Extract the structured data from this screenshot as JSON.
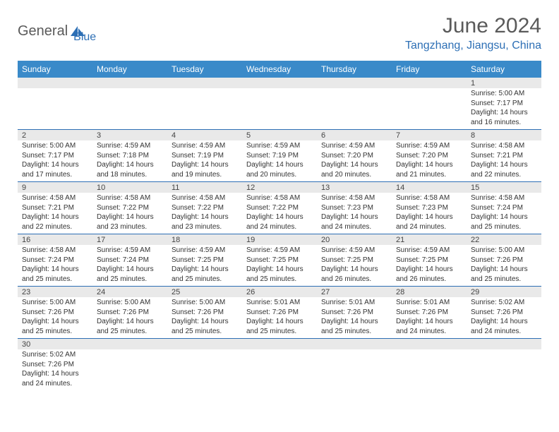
{
  "logo": {
    "part1": "General",
    "part2": "Blue"
  },
  "title": "June 2024",
  "location": "Tangzhang, Jiangsu, China",
  "colors": {
    "header_bg": "#3a8ac9",
    "accent": "#2d6fb5",
    "grey_text": "#5a5a5a",
    "daynum_bg": "#e9e9e9"
  },
  "fonts": {
    "title_size": 30,
    "location_size": 16,
    "th_size": 12,
    "day_size": 11,
    "body_size": 10
  },
  "weekdays": [
    "Sunday",
    "Monday",
    "Tuesday",
    "Wednesday",
    "Thursday",
    "Friday",
    "Saturday"
  ],
  "weeks": [
    [
      null,
      null,
      null,
      null,
      null,
      null,
      {
        "n": "1",
        "sr": "5:00 AM",
        "ss": "7:17 PM",
        "dl": "14 hours and 16 minutes."
      }
    ],
    [
      {
        "n": "2",
        "sr": "5:00 AM",
        "ss": "7:17 PM",
        "dl": "14 hours and 17 minutes."
      },
      {
        "n": "3",
        "sr": "4:59 AM",
        "ss": "7:18 PM",
        "dl": "14 hours and 18 minutes."
      },
      {
        "n": "4",
        "sr": "4:59 AM",
        "ss": "7:19 PM",
        "dl": "14 hours and 19 minutes."
      },
      {
        "n": "5",
        "sr": "4:59 AM",
        "ss": "7:19 PM",
        "dl": "14 hours and 20 minutes."
      },
      {
        "n": "6",
        "sr": "4:59 AM",
        "ss": "7:20 PM",
        "dl": "14 hours and 20 minutes."
      },
      {
        "n": "7",
        "sr": "4:59 AM",
        "ss": "7:20 PM",
        "dl": "14 hours and 21 minutes."
      },
      {
        "n": "8",
        "sr": "4:58 AM",
        "ss": "7:21 PM",
        "dl": "14 hours and 22 minutes."
      }
    ],
    [
      {
        "n": "9",
        "sr": "4:58 AM",
        "ss": "7:21 PM",
        "dl": "14 hours and 22 minutes."
      },
      {
        "n": "10",
        "sr": "4:58 AM",
        "ss": "7:22 PM",
        "dl": "14 hours and 23 minutes."
      },
      {
        "n": "11",
        "sr": "4:58 AM",
        "ss": "7:22 PM",
        "dl": "14 hours and 23 minutes."
      },
      {
        "n": "12",
        "sr": "4:58 AM",
        "ss": "7:22 PM",
        "dl": "14 hours and 24 minutes."
      },
      {
        "n": "13",
        "sr": "4:58 AM",
        "ss": "7:23 PM",
        "dl": "14 hours and 24 minutes."
      },
      {
        "n": "14",
        "sr": "4:58 AM",
        "ss": "7:23 PM",
        "dl": "14 hours and 24 minutes."
      },
      {
        "n": "15",
        "sr": "4:58 AM",
        "ss": "7:24 PM",
        "dl": "14 hours and 25 minutes."
      }
    ],
    [
      {
        "n": "16",
        "sr": "4:58 AM",
        "ss": "7:24 PM",
        "dl": "14 hours and 25 minutes."
      },
      {
        "n": "17",
        "sr": "4:59 AM",
        "ss": "7:24 PM",
        "dl": "14 hours and 25 minutes."
      },
      {
        "n": "18",
        "sr": "4:59 AM",
        "ss": "7:25 PM",
        "dl": "14 hours and 25 minutes."
      },
      {
        "n": "19",
        "sr": "4:59 AM",
        "ss": "7:25 PM",
        "dl": "14 hours and 25 minutes."
      },
      {
        "n": "20",
        "sr": "4:59 AM",
        "ss": "7:25 PM",
        "dl": "14 hours and 26 minutes."
      },
      {
        "n": "21",
        "sr": "4:59 AM",
        "ss": "7:25 PM",
        "dl": "14 hours and 26 minutes."
      },
      {
        "n": "22",
        "sr": "5:00 AM",
        "ss": "7:26 PM",
        "dl": "14 hours and 25 minutes."
      }
    ],
    [
      {
        "n": "23",
        "sr": "5:00 AM",
        "ss": "7:26 PM",
        "dl": "14 hours and 25 minutes."
      },
      {
        "n": "24",
        "sr": "5:00 AM",
        "ss": "7:26 PM",
        "dl": "14 hours and 25 minutes."
      },
      {
        "n": "25",
        "sr": "5:00 AM",
        "ss": "7:26 PM",
        "dl": "14 hours and 25 minutes."
      },
      {
        "n": "26",
        "sr": "5:01 AM",
        "ss": "7:26 PM",
        "dl": "14 hours and 25 minutes."
      },
      {
        "n": "27",
        "sr": "5:01 AM",
        "ss": "7:26 PM",
        "dl": "14 hours and 25 minutes."
      },
      {
        "n": "28",
        "sr": "5:01 AM",
        "ss": "7:26 PM",
        "dl": "14 hours and 24 minutes."
      },
      {
        "n": "29",
        "sr": "5:02 AM",
        "ss": "7:26 PM",
        "dl": "14 hours and 24 minutes."
      }
    ],
    [
      {
        "n": "30",
        "sr": "5:02 AM",
        "ss": "7:26 PM",
        "dl": "14 hours and 24 minutes."
      },
      null,
      null,
      null,
      null,
      null,
      null
    ]
  ],
  "labels": {
    "sunrise": "Sunrise:",
    "sunset": "Sunset:",
    "daylight": "Daylight:"
  }
}
